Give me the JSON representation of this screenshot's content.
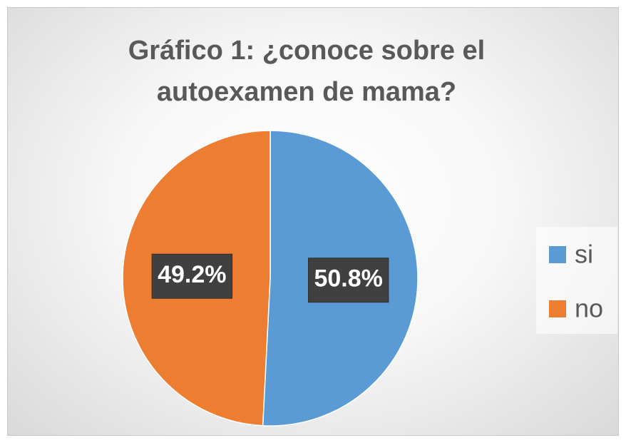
{
  "chart_data": {
    "type": "pie",
    "title": "Gráfico 1: ¿conoce sobre el autoexamen de mama?",
    "categories": [
      "si",
      "no"
    ],
    "values": [
      50.8,
      49.2
    ],
    "value_labels": [
      "50.8%",
      "49.2%"
    ],
    "colors": [
      "#5b9bd5",
      "#ed7d31"
    ],
    "legend": "right"
  }
}
